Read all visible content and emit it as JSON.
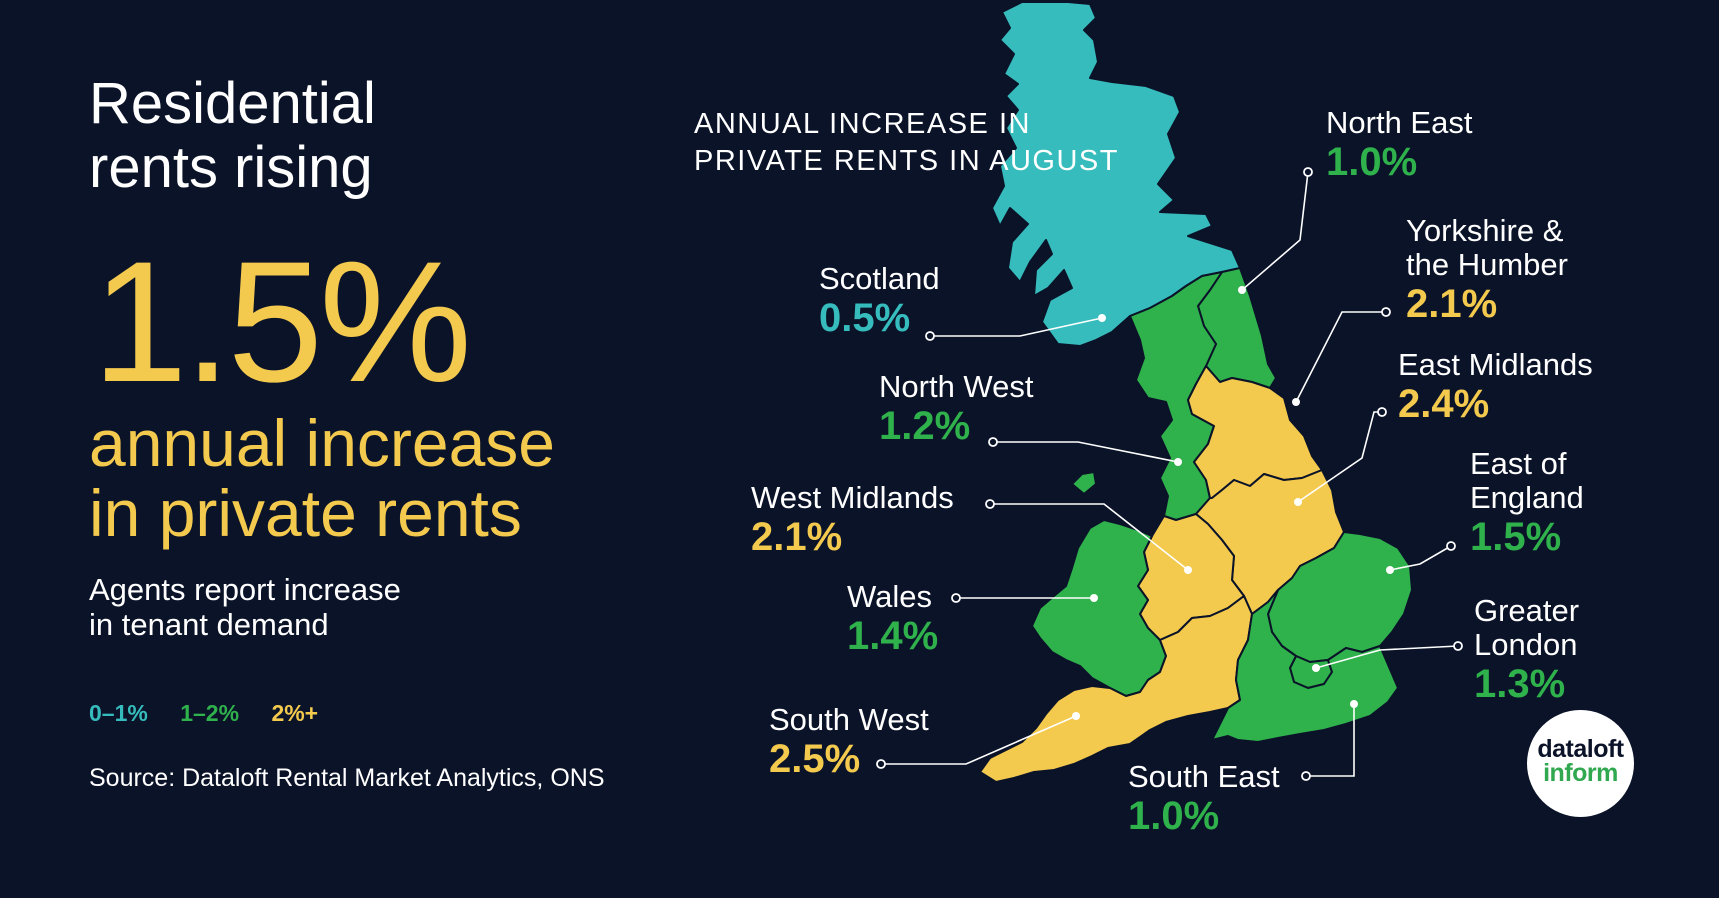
{
  "headline": {
    "line1": "Residential",
    "line2": "rents rising"
  },
  "big_value": "1.5%",
  "big_caption": {
    "line1": "annual increase",
    "line2": "in private rents"
  },
  "description": {
    "line1": "Agents report increase",
    "line2": "in tenant demand"
  },
  "legend": [
    {
      "label": "0–1%",
      "color": "#36bcbc"
    },
    {
      "label": "1–2%",
      "color": "#2fb14c"
    },
    {
      "label": "2%+",
      "color": "#f3c94e"
    }
  ],
  "source": "Source: Dataloft Rental Market Analytics, ONS",
  "map_title": {
    "line1": "ANNUAL INCREASE IN",
    "line2": "PRIVATE RENTS IN AUGUST"
  },
  "regions": {
    "scotland": {
      "name": "Scotland",
      "value": "0.5%",
      "color": "#36bcbc"
    },
    "north_east": {
      "name": "North East",
      "value": "1.0%",
      "color": "#2fb14c"
    },
    "yorkshire": {
      "name_line1": "Yorkshire &",
      "name_line2": "the Humber",
      "value": "2.1%",
      "color": "#f3c94e"
    },
    "north_west": {
      "name": "North West",
      "value": "1.2%",
      "color": "#2fb14c"
    },
    "east_midlands": {
      "name": "East Midlands",
      "value": "2.4%",
      "color": "#f3c94e"
    },
    "west_midlands": {
      "name": "West Midlands",
      "value": "2.1%",
      "color": "#f3c94e"
    },
    "east_of_england": {
      "name_line1": "East of",
      "name_line2": "England",
      "value": "1.5%",
      "color": "#2fb14c"
    },
    "wales": {
      "name": "Wales",
      "value": "1.4%",
      "color": "#2fb14c"
    },
    "greater_london": {
      "name_line1": "Greater",
      "name_line2": "London",
      "value": "1.3%",
      "color": "#2fb14c"
    },
    "south_west": {
      "name": "South West",
      "value": "2.5%",
      "color": "#f3c94e"
    },
    "south_east": {
      "name": "South East",
      "value": "1.0%",
      "color": "#2fb14c"
    }
  },
  "brand": {
    "line1": "dataloft",
    "line2": "inform"
  }
}
